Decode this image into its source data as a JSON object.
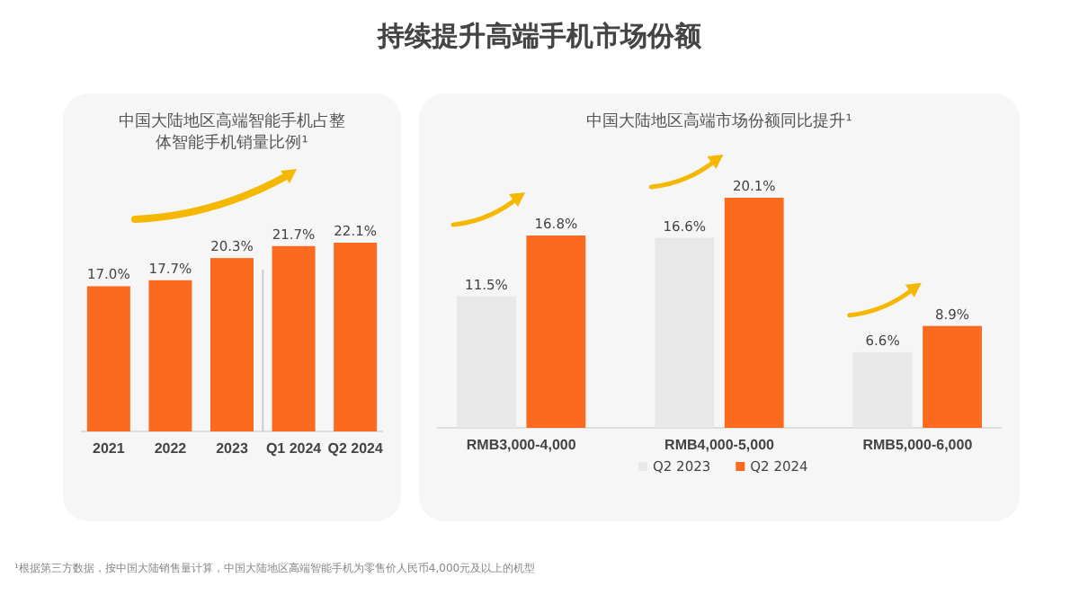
{
  "chart_data": [
    {
      "type": "bar",
      "title": "中国大陆地区高端智能手机占整体智能手机销量比例¹",
      "categories": [
        "2021",
        "2022",
        "2023",
        "Q1 2024",
        "Q2 2024"
      ],
      "values": [
        17.0,
        17.7,
        20.3,
        21.7,
        22.1
      ],
      "value_labels": [
        "17.0%",
        "17.7%",
        "20.3%",
        "21.7%",
        "22.1%"
      ],
      "color": "#fb6a1f",
      "annotations": [
        "持续提升高端手机市场份额",
        "¹根据第三方数据，按中国大陆销售量计算，中国大陆地区高端智能手机为零售价人民币4,000元及以上的机型"
      ]
    },
    {
      "type": "bar",
      "title": "中国大陆地区高端市场份额同比提升¹",
      "categories": [
        "RMB3,000-4,000",
        "RMB4,000-5,000",
        "RMB5,000-6,000"
      ],
      "legend": "bottom",
      "series": [
        {
          "name": "Q2 2023",
          "color": "#e8e8e8",
          "values": [
            11.5,
            16.6,
            6.6
          ],
          "value_labels": [
            "11.5%",
            "16.6%",
            "6.6%"
          ]
        },
        {
          "name": "Q2 2024",
          "color": "#fb6a1f",
          "values": [
            16.8,
            20.1,
            8.9
          ],
          "value_labels": [
            "16.8%",
            "20.1%",
            "8.9%"
          ]
        }
      ]
    }
  ]
}
